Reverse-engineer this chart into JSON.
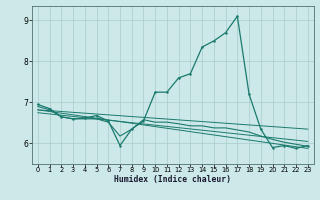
{
  "xlabel": "Humidex (Indice chaleur)",
  "bg_color": "#cce8e8",
  "line_color": "#1a7a6e",
  "grid_color": "#aacccc",
  "xlim": [
    -0.5,
    23.5
  ],
  "ylim": [
    5.5,
    9.35
  ],
  "xticks": [
    0,
    1,
    2,
    3,
    4,
    5,
    6,
    7,
    8,
    9,
    10,
    11,
    12,
    13,
    14,
    15,
    16,
    17,
    18,
    19,
    20,
    21,
    22,
    23
  ],
  "yticks": [
    6,
    7,
    8,
    9
  ],
  "line1_x": [
    0,
    1,
    2,
    3,
    4,
    5,
    6,
    7,
    8,
    9,
    10,
    11,
    12,
    13,
    14,
    15,
    16,
    17,
    18,
    19,
    20,
    21,
    22,
    23
  ],
  "line1_y": [
    6.95,
    6.85,
    6.65,
    6.6,
    6.62,
    6.68,
    6.55,
    5.95,
    6.35,
    6.55,
    7.25,
    7.25,
    7.6,
    7.7,
    8.35,
    8.5,
    8.7,
    9.1,
    7.2,
    6.35,
    5.9,
    5.95,
    5.88,
    5.95
  ],
  "line2_x": [
    0,
    1,
    2,
    3,
    4,
    5,
    6,
    7,
    8,
    9,
    10,
    11,
    12,
    13,
    14,
    15,
    16,
    17,
    18,
    19,
    20,
    21,
    22,
    23
  ],
  "line2_y": [
    6.9,
    6.82,
    6.65,
    6.6,
    6.6,
    6.6,
    6.52,
    6.18,
    6.35,
    6.58,
    6.52,
    6.52,
    6.48,
    6.43,
    6.43,
    6.38,
    6.38,
    6.33,
    6.28,
    6.18,
    6.1,
    6.03,
    5.98,
    5.93
  ],
  "line3_x": [
    0,
    23
  ],
  "line3_y": [
    6.82,
    6.35
  ],
  "line4_x": [
    0,
    23
  ],
  "line4_y": [
    6.82,
    5.88
  ],
  "line5_x": [
    0,
    23
  ],
  "line5_y": [
    6.75,
    6.05
  ]
}
